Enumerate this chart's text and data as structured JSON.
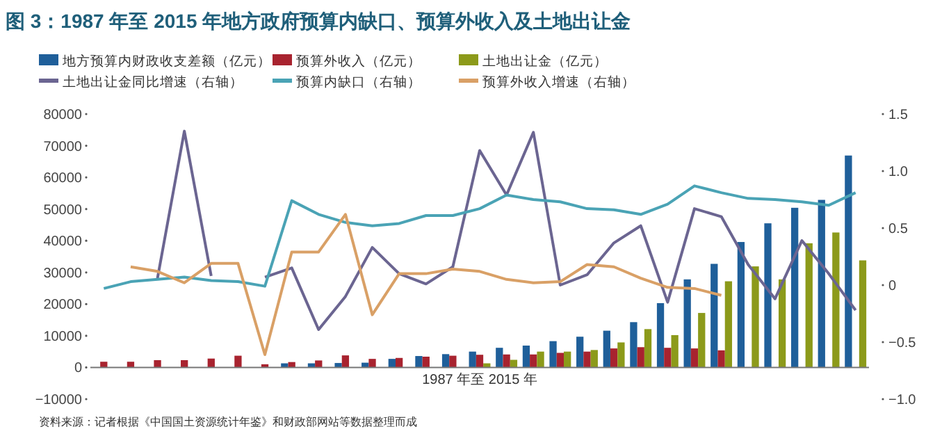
{
  "chart_data": {
    "type": "bar",
    "title": "图 3：1987 年至 2015 年地方政府预算内缺口、预算外收入及土地出让金",
    "xlabel": "1987 年至 2015 年",
    "categories": [
      null,
      null,
      null,
      null,
      null,
      null,
      null,
      null,
      null,
      null,
      null,
      null,
      null,
      null,
      null,
      null,
      null,
      null,
      null,
      null,
      null,
      null,
      null,
      null,
      null,
      null,
      null,
      null,
      null
    ],
    "series": [
      {
        "name": "地方预算内财政收支差额（亿元）",
        "color": "#1f5f9a",
        "values": [
          null,
          null,
          null,
          null,
          null,
          null,
          null,
          1300,
          1300,
          1400,
          1500,
          2700,
          3600,
          4200,
          5000,
          6200,
          6900,
          8300,
          9700,
          11600,
          14300,
          20300,
          27800,
          32700,
          39600,
          45500,
          50400,
          52900,
          66900
        ]
      },
      {
        "name": "预算外收入（亿元）",
        "color": "#a8232f",
        "values": [
          1800,
          1800,
          2300,
          2300,
          2800,
          3700,
          1000,
          1700,
          2200,
          3800,
          2700,
          3000,
          3400,
          3700,
          4000,
          4100,
          4100,
          4600,
          5000,
          6000,
          6400,
          6200,
          6000,
          5400,
          null,
          null,
          null,
          null,
          null
        ]
      },
      {
        "name": "土地出让金（亿元）",
        "color": "#8c9a1a",
        "values": [
          null,
          null,
          null,
          null,
          null,
          null,
          null,
          null,
          null,
          null,
          null,
          null,
          null,
          null,
          1300,
          2400,
          5000,
          5000,
          5500,
          7900,
          12100,
          10200,
          17200,
          27200,
          31900,
          27800,
          39200,
          42600,
          33800
        ]
      },
      {
        "name": "土地出让金同比增速（右轴）",
        "type": "line",
        "axis": "y2",
        "color": "#6b6591",
        "values": [
          null,
          null,
          0.06,
          1.35,
          0.08,
          null,
          0.07,
          0.15,
          -0.39,
          -0.1,
          0.33,
          0.1,
          0.01,
          0.16,
          1.18,
          0.79,
          1.34,
          0.0,
          0.09,
          0.37,
          0.52,
          -0.15,
          0.67,
          0.6,
          0.18,
          -0.12,
          0.39,
          0.1,
          -0.22
        ]
      },
      {
        "name": "预算内缺口（右轴）",
        "type": "line",
        "axis": "y2",
        "color": "#4aa3b5",
        "values": [
          -0.03,
          0.03,
          0.05,
          0.07,
          0.04,
          0.03,
          -0.01,
          0.74,
          0.62,
          0.55,
          0.52,
          0.54,
          0.61,
          0.61,
          0.67,
          0.79,
          0.75,
          0.73,
          0.67,
          0.66,
          0.62,
          0.71,
          0.87,
          0.81,
          0.76,
          0.75,
          0.73,
          0.7,
          0.81
        ]
      },
      {
        "name": "预算外收入增速（右轴）",
        "type": "line",
        "axis": "y2",
        "color": "#d9a066",
        "values": [
          null,
          0.16,
          0.12,
          0.02,
          0.19,
          0.19,
          -0.61,
          0.29,
          0.29,
          0.62,
          -0.26,
          0.1,
          0.1,
          0.14,
          0.12,
          0.05,
          0.02,
          0.03,
          0.18,
          0.16,
          0.06,
          -0.02,
          -0.03,
          -0.09,
          null,
          null,
          null,
          null,
          null
        ]
      }
    ],
    "ylim": [
      -10000,
      80000
    ],
    "yticks": [
      -10000,
      0,
      10000,
      20000,
      30000,
      40000,
      50000,
      60000,
      70000,
      80000
    ],
    "y2lim": [
      -1.0,
      1.5
    ],
    "y2ticks": [
      {
        "value": -1.0,
        "label": "−1.0"
      },
      {
        "value": -0.5,
        "label": "−0.5"
      },
      {
        "value": 0,
        "label": "0"
      },
      {
        "value": 0.5,
        "label": "0.5"
      },
      {
        "value": 1.0,
        "label": "1.0"
      },
      {
        "value": 1.5,
        "label": "1.5"
      }
    ],
    "legend": "top",
    "annotations": [
      "资料来源：记者根据《中国国土资源统计年鉴》和财政部网站等数据整理而成"
    ]
  }
}
